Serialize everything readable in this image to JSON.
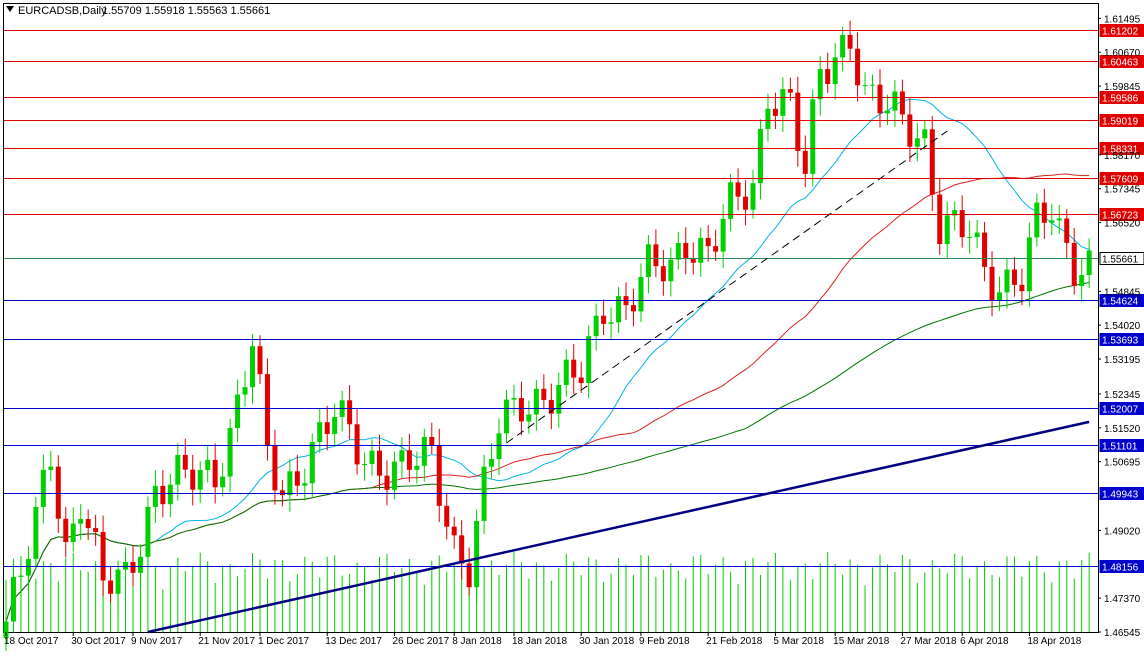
{
  "header": {
    "symbol": "EURCADSB,Daily",
    "ohlc": "1.55709 1.55918 1.55563 1.55661"
  },
  "colors": {
    "bull": "#00d000",
    "bear": "#e00000",
    "resistance": "#e00000",
    "support": "#0000cc",
    "current": "#2e8b57",
    "ma_fast": "#00b4e6",
    "ma_mid": "#dd2020",
    "ma_slow": "#007700",
    "trend": "#000080",
    "volume": "#00cc00"
  },
  "chart_data": {
    "type": "candlestick",
    "timeframe": "Daily",
    "ylim": [
      1.46545,
      1.61845
    ],
    "y_ticks": [
      "1.61495",
      "1.60670",
      "1.59845",
      "1.58170",
      "1.57345",
      "1.56520",
      "1.54845",
      "1.54020",
      "1.53195",
      "1.52345",
      "1.51520",
      "1.50695",
      "1.49020",
      "1.47370",
      "1.46545"
    ],
    "x_ticks": [
      "18 Oct 2017",
      "30 Oct 2017",
      "9 Nov 2017",
      "21 Nov 2017",
      "1 Dec 2017",
      "13 Dec 2017",
      "26 Dec 2017",
      "8 Jan 2018",
      "18 Jan 2018",
      "30 Jan 2018",
      "9 Feb 2018",
      "21 Feb 2018",
      "5 Mar 2018",
      "15 Mar 2018",
      "27 Mar 2018",
      "6 Apr 2018",
      "18 Apr 2018"
    ],
    "x_tick_index": [
      0,
      9,
      17,
      26,
      34,
      43,
      52,
      60,
      68,
      77,
      85,
      94,
      103,
      111,
      120,
      128,
      137
    ],
    "horizontal_levels": [
      {
        "price": 1.61202,
        "label": "1.61202",
        "kind": "resistance"
      },
      {
        "price": 1.60463,
        "label": "1.60463",
        "kind": "resistance"
      },
      {
        "price": 1.59586,
        "label": "1.59586",
        "kind": "resistance"
      },
      {
        "price": 1.59019,
        "label": "1.59019",
        "kind": "resistance"
      },
      {
        "price": 1.58331,
        "label": "1.58331",
        "kind": "resistance"
      },
      {
        "price": 1.57609,
        "label": "1.57609",
        "kind": "resistance"
      },
      {
        "price": 1.56723,
        "label": "1.56723",
        "kind": "resistance"
      },
      {
        "price": 1.55661,
        "label": "1.55661",
        "kind": "current"
      },
      {
        "price": 1.54624,
        "label": "1.54624",
        "kind": "support"
      },
      {
        "price": 1.53693,
        "label": "1.53693",
        "kind": "support"
      },
      {
        "price": 1.52007,
        "label": "1.52007",
        "kind": "support"
      },
      {
        "price": 1.51101,
        "label": "1.51101",
        "kind": "support"
      },
      {
        "price": 1.49943,
        "label": "1.49943",
        "kind": "support"
      },
      {
        "price": 1.48156,
        "label": "1.48156",
        "kind": "support"
      }
    ],
    "close_anchors": [
      [
        0,
        1.468
      ],
      [
        2,
        1.478
      ],
      [
        4,
        1.492
      ],
      [
        6,
        1.51
      ],
      [
        8,
        1.486
      ],
      [
        10,
        1.498
      ],
      [
        13,
        1.476
      ],
      [
        16,
        1.479
      ],
      [
        20,
        1.5
      ],
      [
        25,
        1.503
      ],
      [
        28,
        1.505
      ],
      [
        30,
        1.514
      ],
      [
        33,
        1.535
      ],
      [
        35,
        1.508
      ],
      [
        37,
        1.499
      ],
      [
        40,
        1.508
      ],
      [
        44,
        1.518
      ],
      [
        48,
        1.508
      ],
      [
        53,
        1.505
      ],
      [
        57,
        1.508
      ],
      [
        60,
        1.487
      ],
      [
        62,
        1.482
      ],
      [
        64,
        1.5
      ],
      [
        66,
        1.515
      ],
      [
        69,
        1.522
      ],
      [
        74,
        1.524
      ],
      [
        77,
        1.528
      ],
      [
        80,
        1.546
      ],
      [
        83,
        1.545
      ],
      [
        86,
        1.553
      ],
      [
        89,
        1.554
      ],
      [
        91,
        1.562
      ],
      [
        94,
        1.558
      ],
      [
        97,
        1.568
      ],
      [
        100,
        1.574
      ],
      [
        102,
        1.598
      ],
      [
        105,
        1.594
      ],
      [
        107,
        1.576
      ],
      [
        109,
        1.601
      ],
      [
        111,
        1.606
      ],
      [
        113,
        1.612
      ],
      [
        115,
        1.596
      ],
      [
        118,
        1.592
      ],
      [
        121,
        1.589
      ],
      [
        123,
        1.586
      ],
      [
        125,
        1.565
      ],
      [
        127,
        1.563
      ],
      [
        129,
        1.562
      ],
      [
        131,
        1.553
      ],
      [
        133,
        1.551
      ],
      [
        136,
        1.553
      ],
      [
        138,
        1.564
      ],
      [
        140,
        1.567
      ],
      [
        141,
        1.562
      ],
      [
        143,
        1.556
      ]
    ],
    "trend_lines": [
      {
        "style": "solid",
        "from": [
          19,
          1.46545
        ],
        "to": [
          145,
          1.51665
        ]
      },
      {
        "style": "dashed",
        "from": [
          67,
          1.5115
        ],
        "to": [
          126,
          1.5875
        ]
      }
    ],
    "moving_averages": [
      {
        "period": 21,
        "color": "ma_fast"
      },
      {
        "period": 50,
        "color": "ma_mid"
      },
      {
        "period": 100,
        "color": "ma_slow"
      }
    ]
  }
}
